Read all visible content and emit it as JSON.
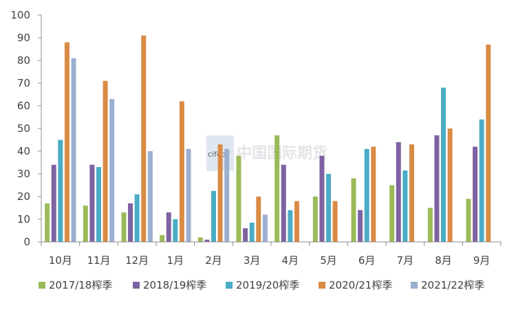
{
  "chart_data": {
    "type": "bar",
    "categories": [
      "10月",
      "11月",
      "12月",
      "1月",
      "2月",
      "3月",
      "4月",
      "5月",
      "6月",
      "7月",
      "8月",
      "9月"
    ],
    "series": [
      {
        "name": "2017/18榨季",
        "color": "#9bbb59",
        "values": [
          17,
          16,
          13,
          3,
          2,
          38,
          47,
          20,
          28,
          25,
          15,
          19
        ]
      },
      {
        "name": "2018/19榨季",
        "color": "#7e62a1",
        "values": [
          34,
          34,
          17,
          13,
          1,
          6,
          34,
          38,
          14,
          44,
          47,
          42
        ]
      },
      {
        "name": "2019/20榨季",
        "color": "#4bacc6",
        "values": [
          45,
          33,
          21,
          10,
          22.5,
          8.5,
          14,
          30,
          41,
          31.5,
          68,
          54
        ]
      },
      {
        "name": "2020/21榨季",
        "color": "#d98b45",
        "values": [
          88,
          71,
          91,
          62,
          43,
          20,
          18,
          18,
          42,
          43,
          50,
          87
        ]
      },
      {
        "name": "2021/22榨季",
        "color": "#9bafd0",
        "values": [
          81,
          63,
          40,
          41,
          41,
          12,
          null,
          null,
          null,
          null,
          null,
          null
        ]
      }
    ],
    "y_ticks": [
      "0",
      "10",
      "20",
      "30",
      "40",
      "50",
      "60",
      "70",
      "80",
      "90",
      "100"
    ],
    "ylim": [
      0,
      100
    ],
    "grid": false,
    "legend_position": "bottom"
  },
  "watermark": {
    "text": "中国国际期货",
    "mark_letters": "cifco",
    "color": "#c7d3e6"
  }
}
